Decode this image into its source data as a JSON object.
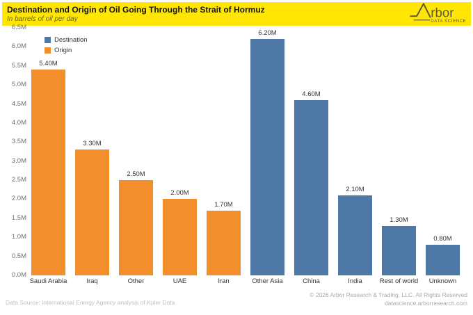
{
  "header": {
    "title": "Destination and Origin of Oil Going Through the Strait of Hormuz",
    "subtitle": "In barrels of oil per day",
    "logo": {
      "brand": "rbor",
      "tagline": "DATA SCIENCE",
      "color": "#55544a"
    }
  },
  "chart_data": {
    "type": "bar",
    "title": "Destination and Origin of Oil Going Through the Strait of Hormuz",
    "subtitle": "In barrels of oil per day",
    "categories": [
      "Saudi Arabia",
      "Iraq",
      "Other",
      "UAE",
      "Iran",
      "Other Asia",
      "China",
      "India",
      "Rest of world",
      "Unknown"
    ],
    "bars": [
      {
        "category": "Saudi Arabia",
        "series": "Origin",
        "value": 5.4,
        "label": "5.40M"
      },
      {
        "category": "Iraq",
        "series": "Origin",
        "value": 3.3,
        "label": "3.30M"
      },
      {
        "category": "Other",
        "series": "Origin",
        "value": 2.5,
        "label": "2.50M"
      },
      {
        "category": "UAE",
        "series": "Origin",
        "value": 2.0,
        "label": "2.00M"
      },
      {
        "category": "Iran",
        "series": "Origin",
        "value": 1.7,
        "label": "1.70M"
      },
      {
        "category": "Other Asia",
        "series": "Destination",
        "value": 6.2,
        "label": "6.20M"
      },
      {
        "category": "China",
        "series": "Destination",
        "value": 4.6,
        "label": "4.60M"
      },
      {
        "category": "India",
        "series": "Destination",
        "value": 2.1,
        "label": "2.10M"
      },
      {
        "category": "Rest of world",
        "series": "Destination",
        "value": 1.3,
        "label": "1.30M"
      },
      {
        "category": "Unknown",
        "series": "Destination",
        "value": 0.8,
        "label": "0.80M"
      }
    ],
    "legend": [
      "Destination",
      "Origin"
    ],
    "legend_position": "top-left",
    "colors": {
      "Destination": "#4e79a7",
      "Origin": "#f28e2b"
    },
    "ylim": [
      0,
      6.5
    ],
    "ytick_step": 0.5,
    "yticks": [
      "0.0M",
      "0.5M",
      "1.0M",
      "1.5M",
      "2.0M",
      "2.5M",
      "3.0M",
      "3.5M",
      "4.0M",
      "4.5M",
      "5.0M",
      "5.5M",
      "6.0M",
      "6.5M"
    ],
    "grid": false
  },
  "footer": {
    "source": "Data Source: International Energy Agency analysis of Kpler Data",
    "copyright": "© 2026 Arbor Research & Trading, LLC. All Rights Reserved",
    "website": "datascience.arborresearch.com"
  },
  "palette": {
    "header_background": "#ffe605",
    "destination_blue": "#4e79a7",
    "origin_orange": "#f28e2b"
  }
}
